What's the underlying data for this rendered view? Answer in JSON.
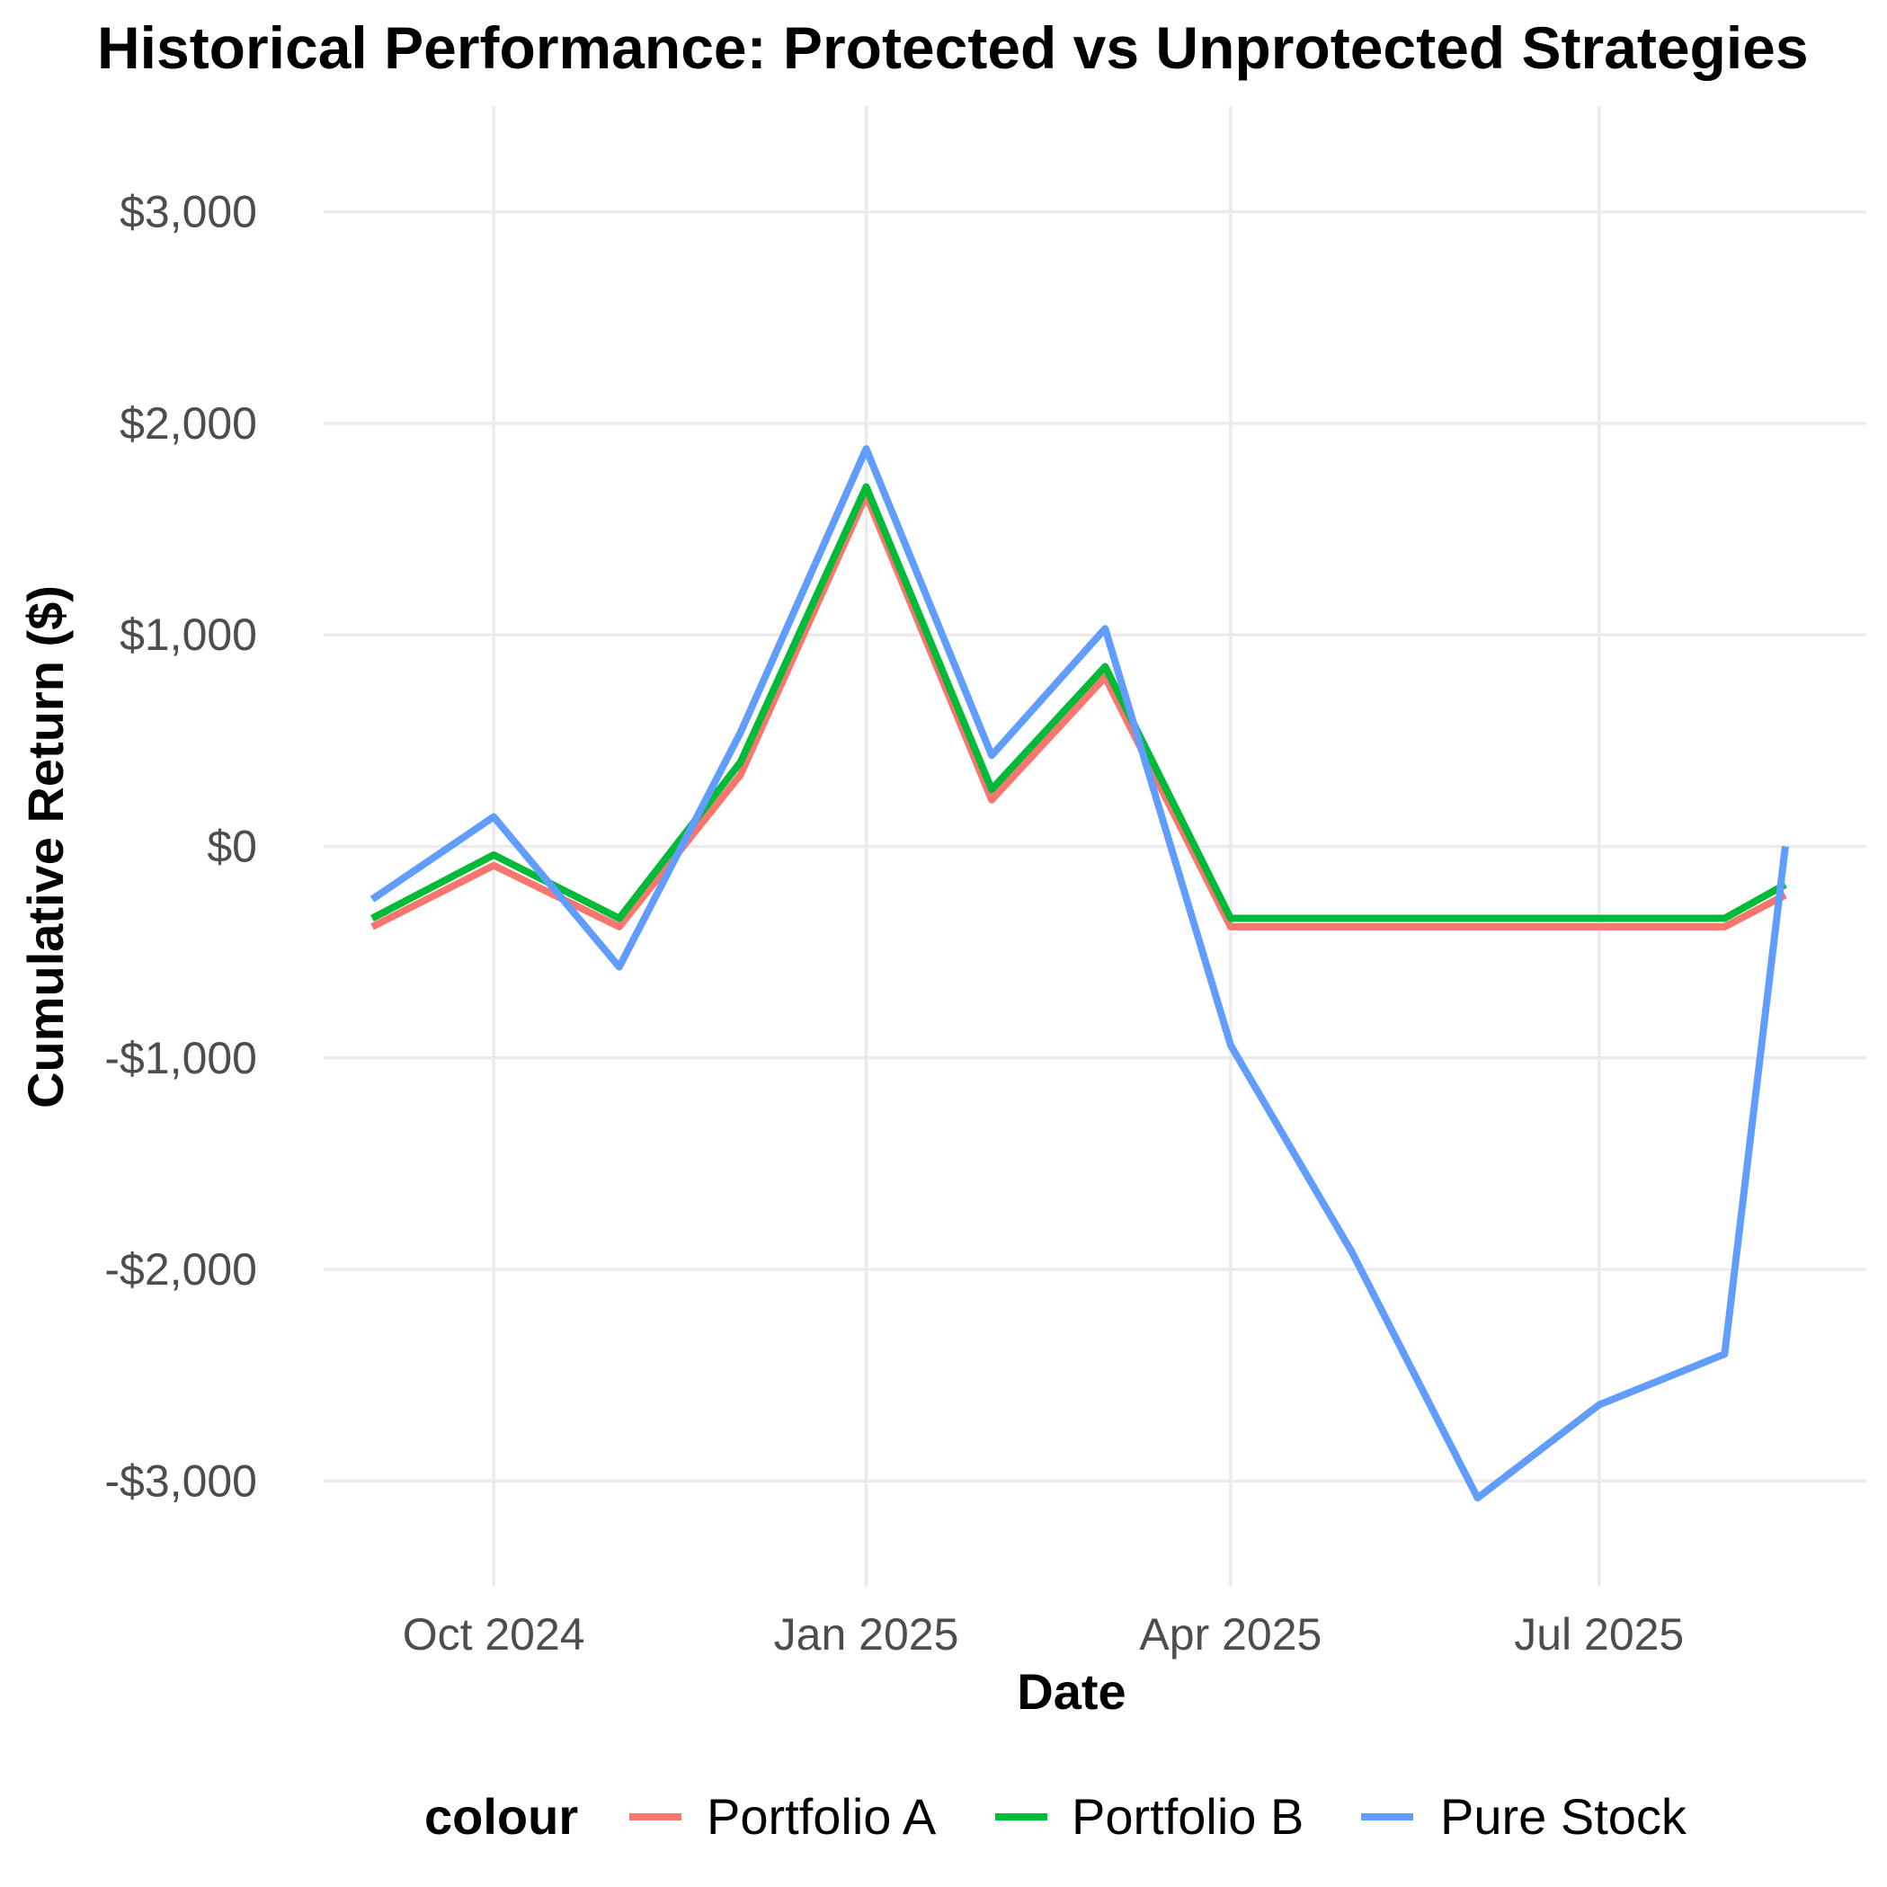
{
  "chart_data": {
    "type": "line",
    "title": "Historical Performance: Protected vs Unprotected Strategies",
    "xlabel": "Date",
    "ylabel": "Cumulative Return ($)",
    "x_ticks": [
      {
        "date": "2024-10-01",
        "label": "Oct 2024"
      },
      {
        "date": "2025-01-01",
        "label": "Jan 2025"
      },
      {
        "date": "2025-04-01",
        "label": "Apr 2025"
      },
      {
        "date": "2025-07-01",
        "label": "Jul 2025"
      }
    ],
    "y_ticks": [
      {
        "value": 3000,
        "label": "$3,000"
      },
      {
        "value": 2000,
        "label": "$2,000"
      },
      {
        "value": 1000,
        "label": "$1,000"
      },
      {
        "value": 0,
        "label": "$0"
      },
      {
        "value": -1000,
        "label": "-$1,000"
      },
      {
        "value": -2000,
        "label": "-$2,000"
      },
      {
        "value": -3000,
        "label": "-$3,000"
      }
    ],
    "xlim": [
      "2024-08-20",
      "2025-09-05"
    ],
    "ylim": [
      -3500,
      3500
    ],
    "grid": true,
    "legend": {
      "title": "colour",
      "position": "bottom"
    },
    "x": [
      "2024-09-01",
      "2024-10-01",
      "2024-11-01",
      "2024-12-01",
      "2025-01-01",
      "2025-02-01",
      "2025-03-01",
      "2025-04-01",
      "2025-05-01",
      "2025-06-01",
      "2025-07-01",
      "2025-08-01",
      "2025-08-16"
    ],
    "series": [
      {
        "name": "Portfolio A",
        "color": "#F8766D",
        "values": [
          -380,
          -90,
          -380,
          340,
          1660,
          220,
          800,
          -380,
          -380,
          -380,
          -380,
          -380,
          -230
        ]
      },
      {
        "name": "Portfolio B",
        "color": "#00BA38",
        "values": [
          -340,
          -40,
          -340,
          400,
          1700,
          270,
          850,
          -340,
          -340,
          -340,
          -340,
          -340,
          -180
        ]
      },
      {
        "name": "Pure Stock",
        "color": "#619CFF",
        "values": [
          -250,
          140,
          -570,
          540,
          1880,
          430,
          1030,
          -940,
          -1920,
          -3080,
          -2640,
          -2400,
          0
        ]
      }
    ]
  }
}
